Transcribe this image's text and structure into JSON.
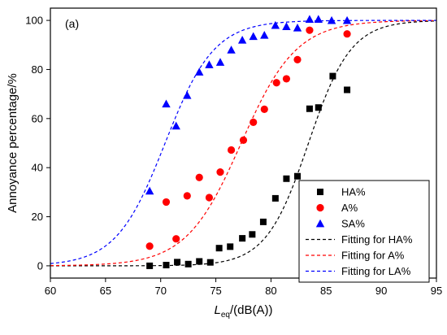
{
  "chart_data": {
    "type": "scatter",
    "panel_label": "(a)",
    "xlabel": {
      "main": "L",
      "sub": "eq",
      "rest": "/(dB(A))"
    },
    "ylabel": "Annoyance percentage/%",
    "xlim": [
      60,
      95
    ],
    "ylim": [
      -5,
      105
    ],
    "xticks": [
      60,
      65,
      70,
      75,
      80,
      85,
      90,
      95
    ],
    "yticks": [
      0,
      20,
      40,
      60,
      80,
      100
    ],
    "grid": false,
    "legend_position": "bottom-right",
    "series": [
      {
        "name": "HA%",
        "marker": "square",
        "color": "#000000",
        "points": [
          [
            69,
            0
          ],
          [
            70.5,
            0.3
          ],
          [
            71.5,
            1.5
          ],
          [
            72.5,
            0.7
          ],
          [
            73.5,
            1.8
          ],
          [
            74.5,
            1.4
          ],
          [
            75.3,
            7.2
          ],
          [
            76.3,
            7.8
          ],
          [
            77.4,
            11.2
          ],
          [
            78.3,
            12.8
          ],
          [
            79.3,
            17.9
          ],
          [
            80.4,
            27.5
          ],
          [
            81.4,
            35.5
          ],
          [
            82.4,
            36.5
          ],
          [
            83.5,
            64
          ],
          [
            84.3,
            64.5
          ],
          [
            85.6,
            77.3
          ],
          [
            86.9,
            71.7
          ]
        ]
      },
      {
        "name": "A%",
        "marker": "circle",
        "color": "#ff0000",
        "points": [
          [
            69,
            8
          ],
          [
            70.5,
            26
          ],
          [
            71.4,
            11
          ],
          [
            72.4,
            28.5
          ],
          [
            73.5,
            36
          ],
          [
            74.4,
            27.8
          ],
          [
            75.4,
            38.2
          ],
          [
            76.4,
            47.2
          ],
          [
            77.5,
            51.2
          ],
          [
            78.4,
            58.5
          ],
          [
            79.4,
            63.8
          ],
          [
            80.5,
            74.6
          ],
          [
            81.4,
            76.2
          ],
          [
            82.4,
            84
          ],
          [
            83.5,
            96
          ],
          [
            86.9,
            94.5
          ]
        ]
      },
      {
        "name": "SA%",
        "marker": "triangle",
        "color": "#0000ff",
        "points": [
          [
            69,
            30.5
          ],
          [
            70.5,
            66
          ],
          [
            71.4,
            57
          ],
          [
            72.4,
            69.5
          ],
          [
            73.5,
            79
          ],
          [
            74.4,
            82
          ],
          [
            75.4,
            83
          ],
          [
            76.4,
            88
          ],
          [
            77.4,
            92
          ],
          [
            78.4,
            93.5
          ],
          [
            79.4,
            94
          ],
          [
            80.4,
            98
          ],
          [
            81.4,
            97.5
          ],
          [
            82.4,
            97
          ],
          [
            83.5,
            100.5
          ],
          [
            84.3,
            100.5
          ],
          [
            85.5,
            100
          ],
          [
            86.9,
            100
          ]
        ]
      },
      {
        "name": "Fitting for HA%",
        "line": "dashed",
        "color": "#000000",
        "fit": {
          "type": "logistic",
          "x0": 83.4,
          "k": 0.52
        }
      },
      {
        "name": "Fitting for A%",
        "line": "dashed",
        "color": "#ff0000",
        "fit": {
          "type": "logistic",
          "x0": 77.3,
          "k": 0.4
        }
      },
      {
        "name": "Fitting for LA%",
        "line": "dashed",
        "color": "#0000ff",
        "fit": {
          "type": "logistic",
          "x0": 70.4,
          "k": 0.45
        }
      }
    ]
  }
}
